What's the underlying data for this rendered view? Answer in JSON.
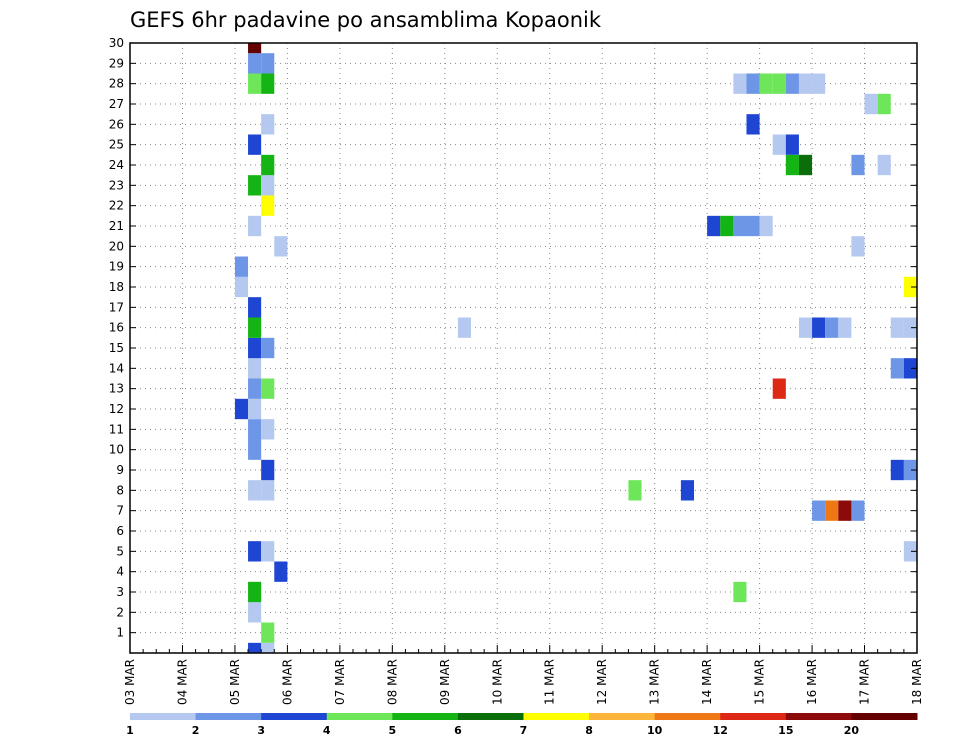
{
  "chart_data": {
    "type": "heatmap",
    "title": "GEFS 6hr padavine po ansamblima Kopaonik",
    "xlabel": "",
    "ylabel": "",
    "x_ticks": [
      "03 MAR",
      "04 MAR",
      "05 MAR",
      "06 MAR",
      "07 MAR",
      "08 MAR",
      "09 MAR",
      "10 MAR",
      "11 MAR",
      "12 MAR",
      "13 MAR",
      "14 MAR",
      "15 MAR",
      "16 MAR",
      "17 MAR",
      "18 MAR"
    ],
    "y_ticks": [
      "1",
      "2",
      "3",
      "4",
      "5",
      "6",
      "7",
      "8",
      "9",
      "10",
      "11",
      "12",
      "13",
      "14",
      "15",
      "16",
      "17",
      "18",
      "19",
      "20",
      "21",
      "22",
      "23",
      "24",
      "25",
      "26",
      "27",
      "28",
      "29",
      "30"
    ],
    "x_range": [
      "03 MAR 00",
      "18 MAR 00"
    ],
    "y_range": [
      0,
      30
    ],
    "time_step_hours": 6,
    "grid": "dotted",
    "legend": {
      "placement": "bottom",
      "levels": [
        "1",
        "2",
        "3",
        "4",
        "5",
        "6",
        "7",
        "8",
        "10",
        "12",
        "15",
        "20"
      ],
      "colors": [
        "#b4c8f0",
        "#6e96e6",
        "#1e46d2",
        "#1e46d2",
        "#6ee65a",
        "#14b414",
        "#0a6e0a",
        "#ffff00",
        "#ffb43c",
        "#f07814",
        "#dc2814",
        "#8c0a0a",
        "#640000"
      ]
    },
    "cells_note": "each cell: x = forecast time (day + hour UTC), y = ensemble member, v = 6hr precipitation category",
    "cells": [
      {
        "x": "05 MAR 06",
        "y": 0,
        "v": 4
      },
      {
        "x": "05 MAR 12",
        "y": 0,
        "v": 1
      },
      {
        "x": "05 MAR 12",
        "y": 1,
        "v": 5
      },
      {
        "x": "05 MAR 06",
        "y": 2,
        "v": 1
      },
      {
        "x": "05 MAR 06",
        "y": 3,
        "v": 6
      },
      {
        "x": "05 MAR 18",
        "y": 4,
        "v": 3
      },
      {
        "x": "05 MAR 06",
        "y": 5,
        "v": 4
      },
      {
        "x": "05 MAR 12",
        "y": 5,
        "v": 1
      },
      {
        "x": "05 MAR 06",
        "y": 8,
        "v": 1
      },
      {
        "x": "05 MAR 12",
        "y": 8,
        "v": 1
      },
      {
        "x": "05 MAR 12",
        "y": 9,
        "v": 4
      },
      {
        "x": "05 MAR 06",
        "y": 10,
        "v": 2
      },
      {
        "x": "05 MAR 06",
        "y": 11,
        "v": 2
      },
      {
        "x": "05 MAR 12",
        "y": 11,
        "v": 1
      },
      {
        "x": "05 MAR 00",
        "y": 12,
        "v": 4
      },
      {
        "x": "05 MAR 06",
        "y": 12,
        "v": 1
      },
      {
        "x": "05 MAR 06",
        "y": 13,
        "v": 2
      },
      {
        "x": "05 MAR 12",
        "y": 13,
        "v": 5
      },
      {
        "x": "05 MAR 06",
        "y": 14,
        "v": 1
      },
      {
        "x": "05 MAR 06",
        "y": 15,
        "v": 4
      },
      {
        "x": "05 MAR 12",
        "y": 15,
        "v": 2
      },
      {
        "x": "05 MAR 06",
        "y": 16,
        "v": 6
      },
      {
        "x": "05 MAR 06",
        "y": 17,
        "v": 4
      },
      {
        "x": "05 MAR 00",
        "y": 18,
        "v": 1
      },
      {
        "x": "05 MAR 00",
        "y": 19,
        "v": 2
      },
      {
        "x": "05 MAR 18",
        "y": 20,
        "v": 1
      },
      {
        "x": "05 MAR 06",
        "y": 21,
        "v": 1
      },
      {
        "x": "05 MAR 12",
        "y": 22,
        "v": 8
      },
      {
        "x": "05 MAR 06",
        "y": 23,
        "v": 6
      },
      {
        "x": "05 MAR 12",
        "y": 23,
        "v": 1
      },
      {
        "x": "05 MAR 12",
        "y": 24,
        "v": 6
      },
      {
        "x": "05 MAR 06",
        "y": 25,
        "v": 4
      },
      {
        "x": "05 MAR 12",
        "y": 26,
        "v": 1
      },
      {
        "x": "05 MAR 06",
        "y": 28,
        "v": 5
      },
      {
        "x": "05 MAR 12",
        "y": 28,
        "v": 6
      },
      {
        "x": "05 MAR 06",
        "y": 29,
        "v": 2
      },
      {
        "x": "05 MAR 12",
        "y": 29,
        "v": 2
      },
      {
        "x": "05 MAR 06",
        "y": 30,
        "v": 13
      },
      {
        "x": "09 MAR 06",
        "y": 16,
        "v": 1
      },
      {
        "x": "12 MAR 12",
        "y": 8,
        "v": 5
      },
      {
        "x": "13 MAR 12",
        "y": 8,
        "v": 4
      },
      {
        "x": "14 MAR 00",
        "y": 21,
        "v": 3
      },
      {
        "x": "14 MAR 06",
        "y": 21,
        "v": 6
      },
      {
        "x": "14 MAR 12",
        "y": 21,
        "v": 2
      },
      {
        "x": "14 MAR 18",
        "y": 21,
        "v": 2
      },
      {
        "x": "15 MAR 00",
        "y": 21,
        "v": 1
      },
      {
        "x": "14 MAR 12",
        "y": 3,
        "v": 5
      },
      {
        "x": "14 MAR 12",
        "y": 28,
        "v": 1
      },
      {
        "x": "14 MAR 18",
        "y": 28,
        "v": 2
      },
      {
        "x": "15 MAR 00",
        "y": 28,
        "v": 5
      },
      {
        "x": "15 MAR 06",
        "y": 28,
        "v": 5
      },
      {
        "x": "15 MAR 12",
        "y": 28,
        "v": 2
      },
      {
        "x": "15 MAR 18",
        "y": 28,
        "v": 1
      },
      {
        "x": "16 MAR 00",
        "y": 28,
        "v": 1
      },
      {
        "x": "14 MAR 18",
        "y": 26,
        "v": 4
      },
      {
        "x": "15 MAR 06",
        "y": 25,
        "v": 1
      },
      {
        "x": "15 MAR 12",
        "y": 25,
        "v": 4
      },
      {
        "x": "15 MAR 06",
        "y": 13,
        "v": 11
      },
      {
        "x": "15 MAR 12",
        "y": 24,
        "v": 6
      },
      {
        "x": "15 MAR 18",
        "y": 24,
        "v": 7
      },
      {
        "x": "15 MAR 18",
        "y": 16,
        "v": 1
      },
      {
        "x": "16 MAR 00",
        "y": 16,
        "v": 4
      },
      {
        "x": "16 MAR 06",
        "y": 16,
        "v": 2
      },
      {
        "x": "16 MAR 12",
        "y": 16,
        "v": 1
      },
      {
        "x": "16 MAR 00",
        "y": 7,
        "v": 2
      },
      {
        "x": "16 MAR 06",
        "y": 7,
        "v": 10
      },
      {
        "x": "16 MAR 12",
        "y": 7,
        "v": 12
      },
      {
        "x": "16 MAR 18",
        "y": 7,
        "v": 2
      },
      {
        "x": "16 MAR 18",
        "y": 24,
        "v": 2
      },
      {
        "x": "16 MAR 18",
        "y": 20,
        "v": 1
      },
      {
        "x": "17 MAR 00",
        "y": 27,
        "v": 1
      },
      {
        "x": "17 MAR 06",
        "y": 27,
        "v": 5
      },
      {
        "x": "17 MAR 06",
        "y": 24,
        "v": 1
      },
      {
        "x": "17 MAR 12",
        "y": 16,
        "v": 1
      },
      {
        "x": "17 MAR 18",
        "y": 16,
        "v": 1
      },
      {
        "x": "17 MAR 18",
        "y": 18,
        "v": 8
      },
      {
        "x": "17 MAR 12",
        "y": 14,
        "v": 2
      },
      {
        "x": "17 MAR 18",
        "y": 14,
        "v": 4
      },
      {
        "x": "17 MAR 12",
        "y": 9,
        "v": 4
      },
      {
        "x": "17 MAR 18",
        "y": 9,
        "v": 2
      },
      {
        "x": "17 MAR 18",
        "y": 5,
        "v": 1
      }
    ]
  }
}
